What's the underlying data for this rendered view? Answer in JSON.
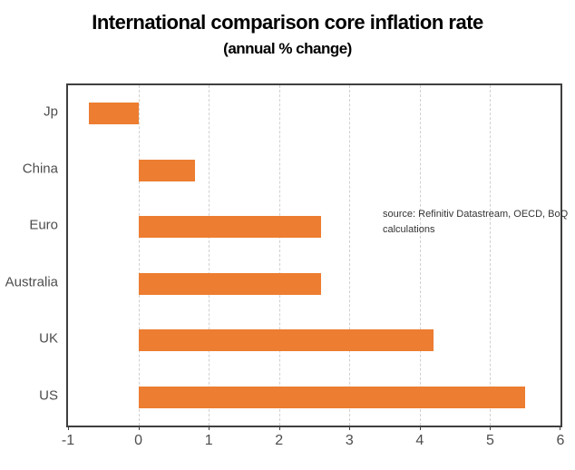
{
  "title": "International comparison core inflation rate",
  "subtitle": "(annual % change)",
  "source_note": {
    "line1": "source:  Refinitiv Datastream, OECD, BoQ",
    "line2": "calculations"
  },
  "chart_data": {
    "type": "bar",
    "orientation": "horizontal",
    "title": "International comparison core inflation rate",
    "subtitle": "(annual % change)",
    "categories": [
      "Jp",
      "China",
      "Euro",
      "Australia",
      "UK",
      "US"
    ],
    "values": [
      -0.7,
      0.8,
      2.6,
      2.6,
      4.2,
      5.5
    ],
    "xlabel": "",
    "ylabel": "",
    "xlim": [
      -1,
      6
    ],
    "xticks": [
      -1,
      0,
      1,
      2,
      3,
      4,
      5,
      6
    ],
    "grid": "vertical-dashed",
    "legend": "none",
    "annotation": "source:  Refinitiv Datastream, OECD, BoQ calculations"
  },
  "colors": {
    "bar": "#ED7D31",
    "grid": "#D0D0D0",
    "frame": "#3F3F3F",
    "tick_label": "#4D4D4D",
    "title": "#000000",
    "note": "#333333",
    "background": "#FFFFFF"
  }
}
